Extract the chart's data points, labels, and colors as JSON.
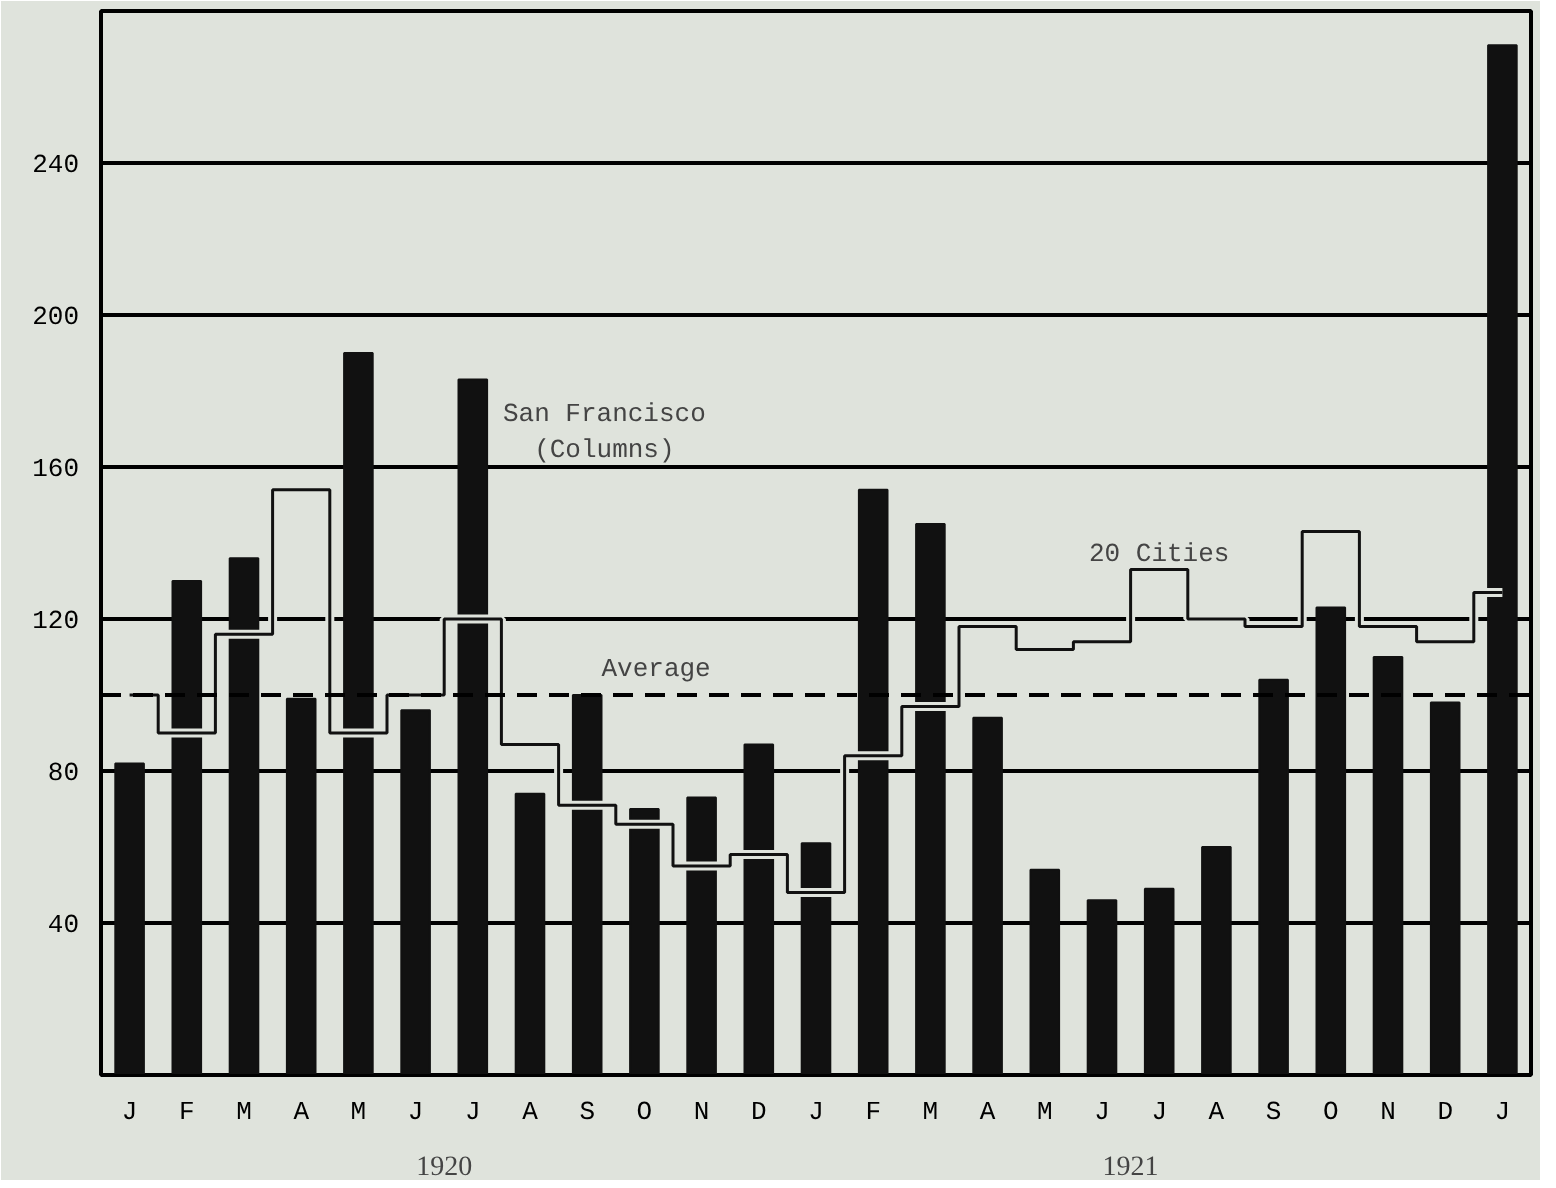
{
  "chart_data": {
    "type": "bar",
    "categories": [
      "J",
      "F",
      "M",
      "A",
      "M",
      "J",
      "J",
      "A",
      "S",
      "O",
      "N",
      "D",
      "J",
      "F",
      "M",
      "A",
      "M",
      "J",
      "J",
      "A",
      "S",
      "O",
      "N",
      "D",
      "J"
    ],
    "series": [
      {
        "color": "#111111",
        "values": [
          82,
          130,
          136,
          99,
          190,
          96,
          183,
          74,
          100,
          70,
          73,
          87,
          61,
          154,
          145,
          94,
          54,
          46,
          49,
          60,
          104,
          123,
          110,
          98,
          271
        ]
      },
      {
        "type": "step",
        "color": "#111111",
        "values": [
          100,
          90,
          116,
          154,
          90,
          100,
          120,
          87,
          71,
          66,
          55,
          58,
          48,
          84,
          97,
          118,
          112,
          114,
          133,
          120,
          118,
          143,
          118,
          114,
          127
        ]
      }
    ],
    "ylim": [
      0,
      280
    ],
    "yticks": [
      40,
      80,
      120,
      160,
      200,
      240
    ],
    "grid": "y",
    "ref_lines": [
      {
        "axis": "y",
        "value": 100,
        "label": "Average",
        "line_style": "dashed"
      }
    ],
    "annotations": [
      "San Francisco\n(Columns)",
      "20 Cities",
      "1920",
      "1921"
    ]
  }
}
